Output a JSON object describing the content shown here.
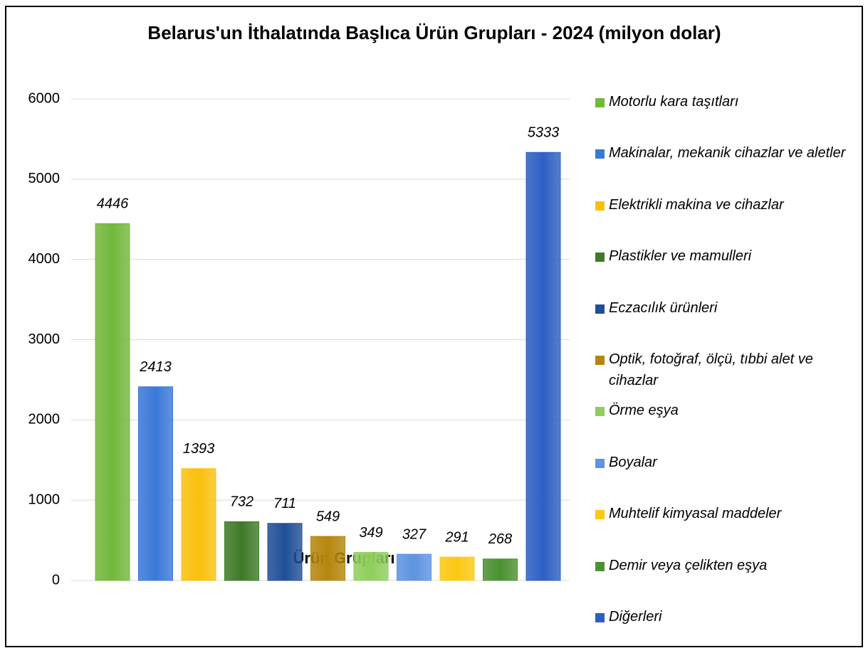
{
  "chart_data": {
    "type": "bar",
    "title": "Belarus'un İthalatında Başlıca Ürün Grupları - 2024 (milyon dolar)",
    "x_label": "Ürün Grupları",
    "categories": [
      null
    ],
    "series": [
      {
        "name": "Motorlu kara taşıtları",
        "color": "#72b83c",
        "values": [
          4446
        ]
      },
      {
        "name": "Makinalar, mekanik cihazlar ve aletler",
        "color": "#3a78d8",
        "values": [
          2413
        ]
      },
      {
        "name": "Elektrikli makina ve cihazlar",
        "color": "#fbc00c",
        "values": [
          1393
        ]
      },
      {
        "name": "Plastikler ve mamulleri",
        "color": "#3f7a28",
        "values": [
          732
        ]
      },
      {
        "name": "Eczacılık ürünleri",
        "color": "#204f98",
        "values": [
          711
        ]
      },
      {
        "name": "Optik, fotoğraf, ölçü, tıbbi alet ve cihazlar",
        "color": "#b5860d",
        "values": [
          549
        ]
      },
      {
        "name": "Örme eşya",
        "color": "#8fce5c",
        "values": [
          349
        ]
      },
      {
        "name": "Boyalar",
        "color": "#5e93e0",
        "values": [
          327
        ]
      },
      {
        "name": "Muhtelif kimyasal maddeler",
        "color": "#fbc812",
        "values": [
          291
        ]
      },
      {
        "name": "Demir veya çelikten eşya",
        "color": "#4b9130",
        "values": [
          268
        ]
      },
      {
        "name": "Diğerleri",
        "color": "#2d5fc4",
        "values": [
          5333
        ]
      }
    ],
    "ylim": [
      0,
      6000
    ],
    "yticks": [
      0,
      1000,
      2000,
      3000,
      4000,
      5000,
      6000
    ],
    "grid": true,
    "legend": "right"
  }
}
